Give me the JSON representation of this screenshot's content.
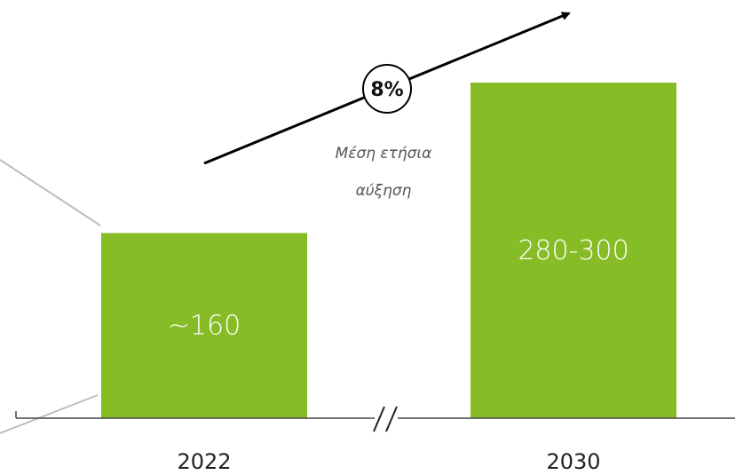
{
  "chart_data": {
    "type": "bar",
    "categories": [
      "2022",
      "2030"
    ],
    "values": [
      160,
      290
    ],
    "value_labels": [
      "~160",
      "280-300"
    ],
    "ylim": [
      0,
      300
    ],
    "grid": false,
    "axis_break": true,
    "bar_color": "#86BC25",
    "annotation": {
      "growth_rate": "8%",
      "line1": "Μέση ετήσια",
      "line2": "αύξηση"
    }
  }
}
